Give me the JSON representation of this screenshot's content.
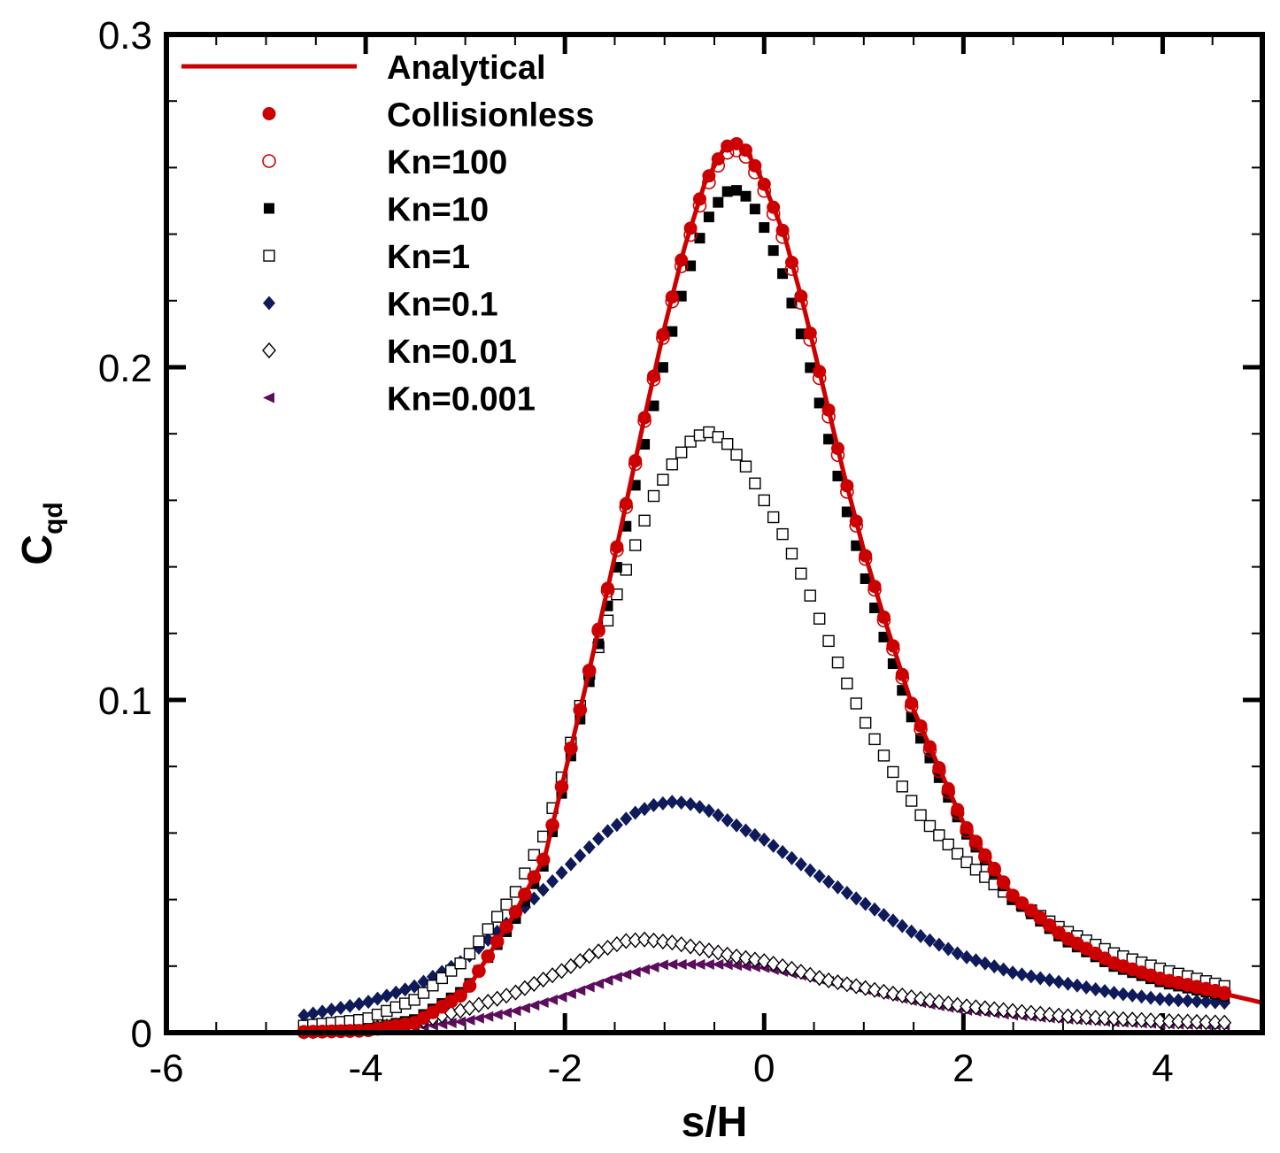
{
  "chart_data": {
    "type": "scatter",
    "title": "",
    "xlabel": "s/H",
    "ylabel_main": "C",
    "ylabel_sub": "qd",
    "xlim": [
      -6,
      5
    ],
    "ylim": [
      0,
      0.3
    ],
    "x_ticks": [
      -6,
      -4,
      -2,
      0,
      2,
      4
    ],
    "x_tick_labels": [
      "-6",
      "-4",
      "-2",
      "0",
      "2",
      "4"
    ],
    "y_ticks": [
      0,
      0.1,
      0.2,
      0.3
    ],
    "y_tick_labels": [
      "0",
      "0.1",
      "0.2",
      "0.3"
    ],
    "grid": false,
    "legend_position": "top-left",
    "x_range_symbols": [
      -4.62,
      4.62
    ],
    "symbol_count": 101,
    "series": [
      {
        "name": "Analytical",
        "marker": "line",
        "color": "#cc0000",
        "x_range": [
          -4.65,
          5.0
        ],
        "profile": [
          [
            -4.65,
            0.0002
          ],
          [
            -4.0,
            0.0006
          ],
          [
            -3.5,
            0.003
          ],
          [
            -3.0,
            0.012
          ],
          [
            -2.5,
            0.036
          ],
          [
            -2.2,
            0.053
          ],
          [
            -2.0,
            0.078
          ],
          [
            -1.8,
            0.103
          ],
          [
            -1.5,
            0.143
          ],
          [
            -1.2,
            0.185
          ],
          [
            -1.0,
            0.212
          ],
          [
            -0.8,
            0.236
          ],
          [
            -0.6,
            0.255
          ],
          [
            -0.4,
            0.266
          ],
          [
            -0.3,
            0.2675
          ],
          [
            -0.2,
            0.266
          ],
          [
            -0.1,
            0.261
          ],
          [
            0.0,
            0.255
          ],
          [
            0.2,
            0.24
          ],
          [
            0.4,
            0.218
          ],
          [
            0.6,
            0.193
          ],
          [
            0.8,
            0.168
          ],
          [
            1.0,
            0.145
          ],
          [
            1.2,
            0.125
          ],
          [
            1.5,
            0.097
          ],
          [
            2.0,
            0.063
          ],
          [
            2.5,
            0.041
          ],
          [
            3.0,
            0.029
          ],
          [
            3.5,
            0.021
          ],
          [
            4.0,
            0.016
          ],
          [
            4.5,
            0.0125
          ],
          [
            5.0,
            0.009
          ]
        ]
      },
      {
        "name": "Collisionless",
        "marker": "filled-circle",
        "color": "#cc0000",
        "profile": [
          [
            -4.65,
            0.0002
          ],
          [
            -4.0,
            0.0006
          ],
          [
            -3.5,
            0.003
          ],
          [
            -3.0,
            0.012
          ],
          [
            -2.5,
            0.036
          ],
          [
            -2.2,
            0.053
          ],
          [
            -2.0,
            0.078
          ],
          [
            -1.8,
            0.103
          ],
          [
            -1.5,
            0.143
          ],
          [
            -1.2,
            0.185
          ],
          [
            -1.0,
            0.212
          ],
          [
            -0.8,
            0.236
          ],
          [
            -0.6,
            0.255
          ],
          [
            -0.4,
            0.266
          ],
          [
            -0.3,
            0.2675
          ],
          [
            -0.2,
            0.266
          ],
          [
            -0.1,
            0.261
          ],
          [
            0.0,
            0.255
          ],
          [
            0.2,
            0.24
          ],
          [
            0.4,
            0.218
          ],
          [
            0.6,
            0.193
          ],
          [
            0.8,
            0.168
          ],
          [
            1.0,
            0.145
          ],
          [
            1.2,
            0.125
          ],
          [
            1.5,
            0.097
          ],
          [
            2.0,
            0.063
          ],
          [
            2.5,
            0.041
          ],
          [
            3.0,
            0.029
          ],
          [
            3.5,
            0.021
          ],
          [
            4.0,
            0.016
          ],
          [
            4.5,
            0.0125
          ],
          [
            5.0,
            0.009
          ]
        ]
      },
      {
        "name": "Kn=100",
        "marker": "open-circle",
        "color": "#cc0000",
        "profile": [
          [
            -4.65,
            0.0002
          ],
          [
            -4.0,
            0.0006
          ],
          [
            -3.5,
            0.003
          ],
          [
            -3.0,
            0.012
          ],
          [
            -2.5,
            0.036
          ],
          [
            -2.2,
            0.053
          ],
          [
            -2.0,
            0.078
          ],
          [
            -1.8,
            0.103
          ],
          [
            -1.5,
            0.142
          ],
          [
            -1.2,
            0.184
          ],
          [
            -1.0,
            0.211
          ],
          [
            -0.8,
            0.234
          ],
          [
            -0.6,
            0.253
          ],
          [
            -0.4,
            0.264
          ],
          [
            -0.3,
            0.2655
          ],
          [
            -0.2,
            0.264
          ],
          [
            -0.1,
            0.259
          ],
          [
            0.0,
            0.253
          ],
          [
            0.2,
            0.238
          ],
          [
            0.4,
            0.216
          ],
          [
            0.6,
            0.191
          ],
          [
            0.8,
            0.166
          ],
          [
            1.0,
            0.144
          ],
          [
            1.2,
            0.124
          ],
          [
            1.5,
            0.096
          ],
          [
            2.0,
            0.062
          ],
          [
            2.5,
            0.041
          ],
          [
            3.0,
            0.029
          ],
          [
            3.5,
            0.021
          ],
          [
            4.0,
            0.016
          ],
          [
            4.62,
            0.012
          ]
        ]
      },
      {
        "name": "Kn=10",
        "marker": "filled-square",
        "color": "#000000",
        "profile": [
          [
            -4.65,
            0.0003
          ],
          [
            -4.0,
            0.001
          ],
          [
            -3.5,
            0.004
          ],
          [
            -3.0,
            0.013
          ],
          [
            -2.5,
            0.034
          ],
          [
            -2.2,
            0.051
          ],
          [
            -2.0,
            0.076
          ],
          [
            -1.8,
            0.1
          ],
          [
            -1.5,
            0.137
          ],
          [
            -1.2,
            0.177
          ],
          [
            -1.0,
            0.202
          ],
          [
            -0.8,
            0.225
          ],
          [
            -0.6,
            0.243
          ],
          [
            -0.4,
            0.2525
          ],
          [
            -0.3,
            0.2535
          ],
          [
            -0.2,
            0.252
          ],
          [
            -0.1,
            0.248
          ],
          [
            0.0,
            0.242
          ],
          [
            0.2,
            0.227
          ],
          [
            0.4,
            0.207
          ],
          [
            0.6,
            0.184
          ],
          [
            0.8,
            0.16
          ],
          [
            1.0,
            0.138
          ],
          [
            1.2,
            0.119
          ],
          [
            1.5,
            0.093
          ],
          [
            2.0,
            0.061
          ],
          [
            2.5,
            0.04
          ],
          [
            3.0,
            0.028
          ],
          [
            3.5,
            0.02
          ],
          [
            4.0,
            0.015
          ],
          [
            4.62,
            0.011
          ]
        ]
      },
      {
        "name": "Kn=1",
        "marker": "open-square",
        "color": "#000000",
        "profile": [
          [
            -4.65,
            0.002
          ],
          [
            -4.0,
            0.004
          ],
          [
            -3.5,
            0.01
          ],
          [
            -3.0,
            0.022
          ],
          [
            -2.5,
            0.042
          ],
          [
            -2.2,
            0.06
          ],
          [
            -2.0,
            0.08
          ],
          [
            -1.8,
            0.104
          ],
          [
            -1.5,
            0.13
          ],
          [
            -1.3,
            0.146
          ],
          [
            -1.1,
            0.162
          ],
          [
            -0.9,
            0.172
          ],
          [
            -0.7,
            0.179
          ],
          [
            -0.55,
            0.1805
          ],
          [
            -0.4,
            0.178
          ],
          [
            -0.2,
            0.171
          ],
          [
            0.0,
            0.16
          ],
          [
            0.2,
            0.149
          ],
          [
            0.4,
            0.136
          ],
          [
            0.6,
            0.121
          ],
          [
            0.8,
            0.107
          ],
          [
            1.0,
            0.094
          ],
          [
            1.3,
            0.078
          ],
          [
            1.6,
            0.064
          ],
          [
            2.0,
            0.052
          ],
          [
            2.5,
            0.04
          ],
          [
            3.0,
            0.031
          ],
          [
            3.5,
            0.024
          ],
          [
            4.0,
            0.019
          ],
          [
            4.62,
            0.014
          ]
        ]
      },
      {
        "name": "Kn=0.1",
        "marker": "filled-diamond",
        "color": "#0f1a5a",
        "profile": [
          [
            -4.65,
            0.005
          ],
          [
            -4.0,
            0.009
          ],
          [
            -3.5,
            0.014
          ],
          [
            -3.0,
            0.022
          ],
          [
            -2.5,
            0.035
          ],
          [
            -2.0,
            0.049
          ],
          [
            -1.6,
            0.06
          ],
          [
            -1.3,
            0.066
          ],
          [
            -1.1,
            0.0685
          ],
          [
            -0.9,
            0.0695
          ],
          [
            -0.7,
            0.0685
          ],
          [
            -0.5,
            0.066
          ],
          [
            -0.2,
            0.061
          ],
          [
            0.0,
            0.058
          ],
          [
            0.5,
            0.048
          ],
          [
            1.0,
            0.039
          ],
          [
            1.5,
            0.03
          ],
          [
            2.0,
            0.023
          ],
          [
            2.5,
            0.018
          ],
          [
            3.0,
            0.015
          ],
          [
            3.5,
            0.012
          ],
          [
            4.0,
            0.01
          ],
          [
            4.62,
            0.009
          ]
        ]
      },
      {
        "name": "Kn=0.01",
        "marker": "open-diamond",
        "color": "#000000",
        "profile": [
          [
            -4.65,
            0.0003
          ],
          [
            -4.0,
            0.001
          ],
          [
            -3.5,
            0.003
          ],
          [
            -3.0,
            0.007
          ],
          [
            -2.5,
            0.012
          ],
          [
            -2.0,
            0.019
          ],
          [
            -1.7,
            0.024
          ],
          [
            -1.4,
            0.0275
          ],
          [
            -1.2,
            0.028
          ],
          [
            -0.9,
            0.027
          ],
          [
            -0.6,
            0.025
          ],
          [
            -0.3,
            0.023
          ],
          [
            0.0,
            0.0215
          ],
          [
            0.3,
            0.019
          ],
          [
            0.6,
            0.016
          ],
          [
            1.0,
            0.0135
          ],
          [
            1.5,
            0.0105
          ],
          [
            2.0,
            0.008
          ],
          [
            2.5,
            0.0065
          ],
          [
            3.0,
            0.005
          ],
          [
            3.5,
            0.0042
          ],
          [
            4.0,
            0.0035
          ],
          [
            4.62,
            0.003
          ]
        ]
      },
      {
        "name": "Kn=0.001",
        "marker": "filled-triangle-left",
        "color": "#5c0e5c",
        "profile": [
          [
            -4.65,
            0.0002
          ],
          [
            -4.0,
            0.0006
          ],
          [
            -3.5,
            0.0015
          ],
          [
            -3.0,
            0.0035
          ],
          [
            -2.5,
            0.0065
          ],
          [
            -2.0,
            0.011
          ],
          [
            -1.5,
            0.0165
          ],
          [
            -1.2,
            0.019
          ],
          [
            -1.0,
            0.0205
          ],
          [
            -0.8,
            0.0205
          ],
          [
            -0.4,
            0.0205
          ],
          [
            0.0,
            0.0195
          ],
          [
            0.4,
            0.017
          ],
          [
            0.8,
            0.0145
          ],
          [
            1.2,
            0.0115
          ],
          [
            1.6,
            0.0088
          ],
          [
            2.0,
            0.0068
          ],
          [
            2.5,
            0.0052
          ],
          [
            3.0,
            0.0041
          ],
          [
            3.5,
            0.0032
          ],
          [
            4.0,
            0.0026
          ],
          [
            4.62,
            0.0022
          ]
        ]
      }
    ]
  }
}
